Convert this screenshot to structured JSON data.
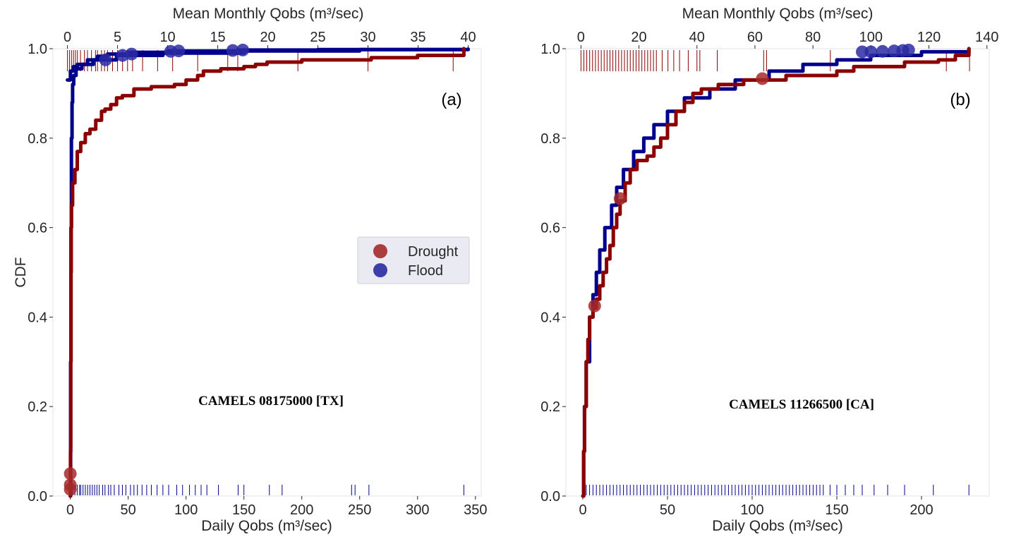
{
  "chart_data": [
    {
      "type": "line",
      "panel_label": "(a)",
      "annotation": "CAMELS 08175000 [TX]",
      "ylabel": "CDF",
      "xlabel": "Daily Qobs",
      "xlabel_unit": "(m³/sec)",
      "top_xlabel": "Mean Monthly Qobs",
      "top_xlabel_unit": "(m³/sec)",
      "xlim": [
        -15,
        355
      ],
      "ylim": [
        0.0,
        1.0
      ],
      "top_xlim": [
        -1.45,
        41.3
      ],
      "xticks": [
        0,
        50,
        100,
        150,
        200,
        250,
        300,
        350
      ],
      "xtick_labels": [
        "0",
        "50",
        "100",
        "150",
        "200",
        "250",
        "300",
        "350"
      ],
      "top_xticks": [
        0,
        5,
        10,
        15,
        20,
        25,
        30,
        35,
        40
      ],
      "top_xtick_labels": [
        "0",
        "5",
        "10",
        "15",
        "20",
        "25",
        "30",
        "35",
        "40"
      ],
      "yticks": [
        0.0,
        0.2,
        0.4,
        0.6,
        0.8,
        1.0
      ],
      "ytick_labels": [
        "0.0",
        "0.2",
        "0.4",
        "0.6",
        "0.8",
        "1.0"
      ],
      "grid": false,
      "legend": {
        "placement": "center-right",
        "entries": [
          {
            "label": "Drought",
            "color": "#a52a2a"
          },
          {
            "label": "Flood",
            "color": "#2b2ba3"
          }
        ]
      },
      "series": [
        {
          "name": "Flood",
          "axis": "bottom",
          "color": "#00008b",
          "cdf_points": [
            [
              0,
              0.0
            ],
            [
              0.3,
              0.3
            ],
            [
              0.6,
              0.6
            ],
            [
              1,
              0.8
            ],
            [
              1.5,
              0.88
            ],
            [
              2,
              0.92
            ],
            [
              3,
              0.94
            ],
            [
              5,
              0.955
            ],
            [
              10,
              0.965
            ],
            [
              20,
              0.975
            ],
            [
              40,
              0.985
            ],
            [
              80,
              0.99
            ],
            [
              150,
              0.995
            ],
            [
              250,
              0.998
            ],
            [
              340,
              1.0
            ]
          ],
          "rug_x": [
            2,
            4,
            6,
            8,
            9,
            11,
            13,
            15,
            17,
            19,
            21,
            23,
            25,
            28,
            30,
            33,
            35,
            38,
            42,
            45,
            48,
            52,
            55,
            58,
            62,
            66,
            70,
            75,
            80,
            85,
            92,
            97,
            103,
            108,
            113,
            118,
            128,
            145,
            150,
            172,
            183,
            243,
            246,
            258,
            340
          ]
        },
        {
          "name": "Flood monthly",
          "axis": "top",
          "color": "#00008b",
          "cdf_points": [
            [
              0,
              0.93
            ],
            [
              0.3,
              0.95
            ],
            [
              0.6,
              0.96
            ],
            [
              1,
              0.965
            ],
            [
              2,
              0.975
            ],
            [
              3,
              0.983
            ],
            [
              4,
              0.988
            ],
            [
              6,
              0.992
            ],
            [
              10,
              0.995
            ],
            [
              17,
              0.997
            ],
            [
              25,
              0.998
            ],
            [
              40,
              0.999
            ]
          ],
          "markers": [
            [
              3.8,
              0.975
            ],
            [
              5.5,
              0.985
            ],
            [
              6.4,
              0.988
            ],
            [
              10.3,
              0.994
            ],
            [
              11.1,
              0.995
            ],
            [
              16.5,
              0.996
            ],
            [
              17.5,
              0.997
            ]
          ]
        },
        {
          "name": "Drought",
          "axis": "bottom",
          "color": "#8b0000",
          "cdf_points": [
            [
              0,
              0.0
            ],
            [
              0.2,
              0.1
            ],
            [
              0.4,
              0.3
            ],
            [
              0.6,
              0.5
            ],
            [
              0.8,
              0.6
            ],
            [
              1,
              0.65
            ],
            [
              2,
              0.7
            ],
            [
              4,
              0.73
            ],
            [
              6,
              0.77
            ],
            [
              9,
              0.79
            ],
            [
              13,
              0.81
            ],
            [
              17,
              0.82
            ],
            [
              22,
              0.84
            ],
            [
              27,
              0.86
            ],
            [
              30,
              0.865
            ],
            [
              35,
              0.875
            ],
            [
              40,
              0.89
            ],
            [
              45,
              0.895
            ],
            [
              55,
              0.91
            ],
            [
              70,
              0.915
            ],
            [
              90,
              0.92
            ],
            [
              100,
              0.93
            ],
            [
              110,
              0.94
            ],
            [
              115,
              0.95
            ],
            [
              130,
              0.955
            ],
            [
              150,
              0.96
            ],
            [
              160,
              0.965
            ],
            [
              170,
              0.97
            ],
            [
              200,
              0.975
            ],
            [
              260,
              0.98
            ],
            [
              300,
              0.985
            ],
            [
              340,
              1.0
            ]
          ],
          "markers": [
            [
              0,
              0.05
            ],
            [
              0,
              0.025
            ],
            [
              0,
              0.015
            ]
          ]
        },
        {
          "name": "Drought monthly",
          "axis": "top",
          "color": "#8b0000",
          "rug_x": [
            0,
            0.2,
            0.4,
            0.6,
            0.8,
            1,
            1.3,
            1.7,
            2,
            2.4,
            2.8,
            3,
            3.4,
            3.7,
            4,
            4.5,
            5,
            5.5,
            6,
            6.5,
            7.5,
            9,
            10.5,
            13,
            16,
            17,
            23,
            30,
            38.5
          ]
        }
      ]
    },
    {
      "type": "line",
      "panel_label": "(b)",
      "annotation": "CAMELS 11266500 [CA]",
      "ylabel": "",
      "xlabel": "Daily Qobs",
      "xlabel_unit": "(m³/sec)",
      "top_xlabel": "Mean Monthly Qobs",
      "top_xlabel_unit": "(m³/sec)",
      "xlim": [
        -10,
        240
      ],
      "ylim": [
        0.0,
        1.0
      ],
      "top_xlim": [
        -5.2,
        140.8
      ],
      "xticks": [
        0,
        50,
        100,
        150,
        200
      ],
      "xtick_labels": [
        "0",
        "50",
        "100",
        "150",
        "200"
      ],
      "top_xticks": [
        0,
        20,
        40,
        60,
        80,
        100,
        120,
        140
      ],
      "top_xtick_labels": [
        "0",
        "20",
        "40",
        "60",
        "80",
        "100",
        "120",
        "140"
      ],
      "yticks": [
        0.0,
        0.2,
        0.4,
        0.6,
        0.8,
        1.0
      ],
      "ytick_labels": [
        "0.0",
        "0.2",
        "0.4",
        "0.6",
        "0.8",
        "1.0"
      ],
      "grid": false,
      "series": [
        {
          "name": "Flood",
          "axis": "bottom",
          "color": "#00008b",
          "cdf_points": [
            [
              0,
              0.0
            ],
            [
              0.5,
              0.1
            ],
            [
              1,
              0.2
            ],
            [
              2,
              0.3
            ],
            [
              4,
              0.4
            ],
            [
              6,
              0.45
            ],
            [
              8,
              0.5
            ],
            [
              10,
              0.55
            ],
            [
              13,
              0.6
            ],
            [
              17,
              0.65
            ],
            [
              20,
              0.69
            ],
            [
              24,
              0.73
            ],
            [
              30,
              0.77
            ],
            [
              36,
              0.8
            ],
            [
              42,
              0.83
            ],
            [
              50,
              0.86
            ],
            [
              60,
              0.89
            ],
            [
              75,
              0.91
            ],
            [
              90,
              0.93
            ],
            [
              110,
              0.95
            ],
            [
              130,
              0.965
            ],
            [
              150,
              0.975
            ],
            [
              170,
              0.985
            ],
            [
              200,
              0.993
            ],
            [
              228,
              1.0
            ]
          ],
          "rug_x": [
            0,
            2,
            4,
            6,
            8,
            10,
            12,
            14,
            16,
            18,
            20,
            22,
            24,
            26,
            28,
            30,
            32,
            34,
            36,
            38,
            40,
            42,
            44,
            46,
            48,
            50,
            52,
            54,
            56,
            58,
            60,
            62,
            64,
            66,
            68,
            70,
            72,
            74,
            76,
            78,
            80,
            82,
            84,
            86,
            88,
            90,
            92,
            94,
            96,
            98,
            100,
            102,
            104,
            106,
            108,
            110,
            112,
            114,
            116,
            118,
            120,
            122,
            124,
            126,
            128,
            130,
            132,
            134,
            136,
            138,
            140,
            142,
            146,
            150,
            155,
            160,
            165,
            172,
            180,
            190,
            207,
            228
          ]
        },
        {
          "name": "Flood monthly",
          "axis": "top",
          "color": "#00008b",
          "markers": [
            [
              97,
              0.993
            ],
            [
              100,
              0.993
            ],
            [
              104,
              0.994
            ],
            [
              108,
              0.995
            ],
            [
              111,
              0.996
            ],
            [
              113,
              0.997
            ]
          ]
        },
        {
          "name": "Drought",
          "axis": "bottom",
          "color": "#8b0000",
          "cdf_points": [
            [
              0,
              0.0
            ],
            [
              0.5,
              0.1
            ],
            [
              1,
              0.2
            ],
            [
              2,
              0.3
            ],
            [
              3,
              0.35
            ],
            [
              4,
              0.4
            ],
            [
              6,
              0.42
            ],
            [
              8,
              0.44
            ],
            [
              10,
              0.47
            ],
            [
              12,
              0.5
            ],
            [
              14,
              0.53
            ],
            [
              16,
              0.56
            ],
            [
              18,
              0.6
            ],
            [
              20,
              0.63
            ],
            [
              22,
              0.66
            ],
            [
              25,
              0.7
            ],
            [
              28,
              0.73
            ],
            [
              32,
              0.75
            ],
            [
              38,
              0.76
            ],
            [
              42,
              0.78
            ],
            [
              46,
              0.8
            ],
            [
              50,
              0.83
            ],
            [
              55,
              0.86
            ],
            [
              60,
              0.88
            ],
            [
              65,
              0.9
            ],
            [
              70,
              0.91
            ],
            [
              80,
              0.92
            ],
            [
              95,
              0.93
            ],
            [
              105,
              0.93
            ],
            [
              120,
              0.94
            ],
            [
              150,
              0.95
            ],
            [
              160,
              0.96
            ],
            [
              190,
              0.97
            ],
            [
              210,
              0.975
            ],
            [
              220,
              0.985
            ],
            [
              228,
              1.0
            ]
          ],
          "markers": [
            [
              7,
              0.425
            ],
            [
              22,
              0.665
            ],
            [
              106,
              0.933
            ]
          ]
        },
        {
          "name": "Drought monthly",
          "axis": "top",
          "color": "#8b0000",
          "rug_x": [
            0,
            1,
            2,
            3,
            4,
            5,
            6,
            7,
            8,
            9,
            10,
            11,
            12,
            13,
            14,
            15,
            16,
            17,
            18,
            19,
            20,
            21,
            22,
            23,
            24,
            25,
            26,
            28,
            30,
            32,
            34,
            37,
            40,
            41,
            47,
            63,
            64,
            86,
            126,
            134
          ]
        }
      ]
    }
  ]
}
